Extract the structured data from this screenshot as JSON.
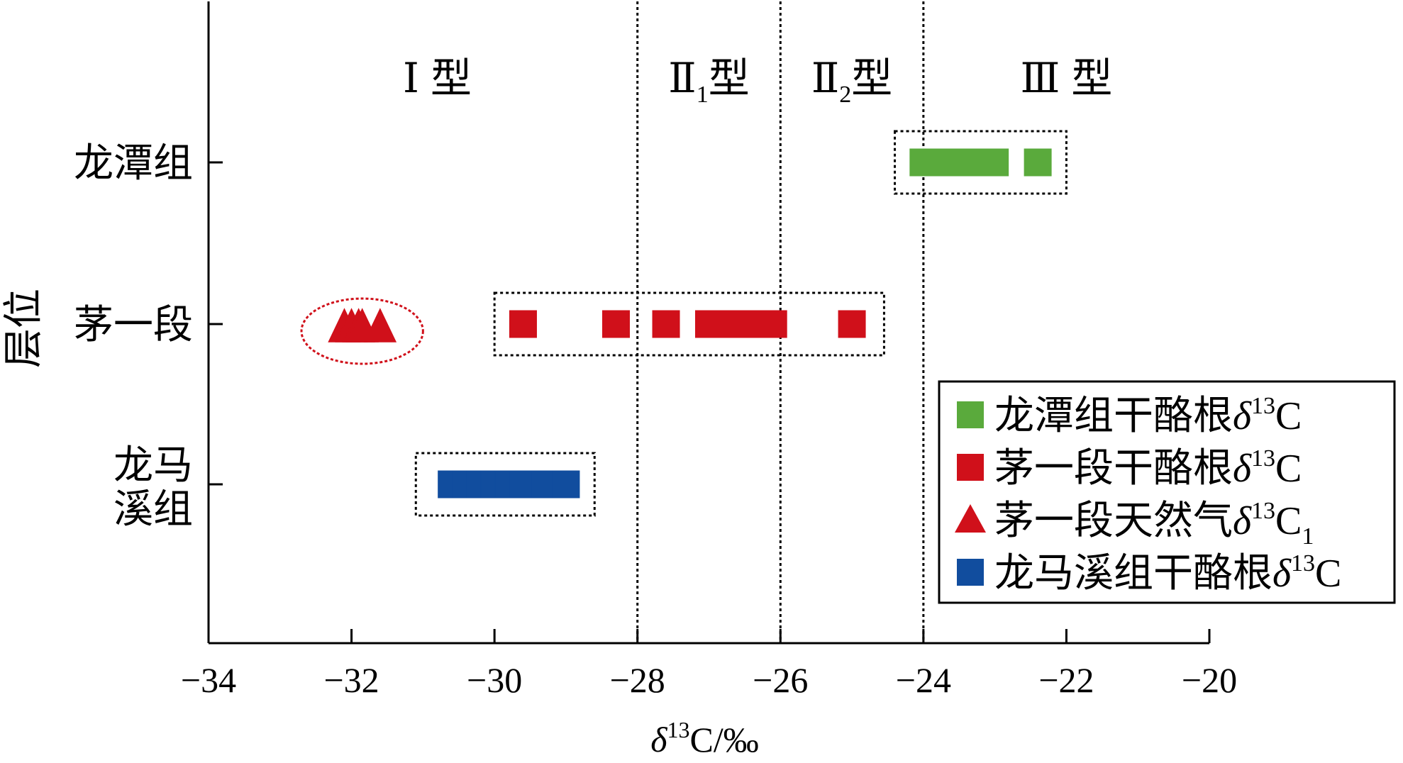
{
  "chart_data": {
    "type": "scatter",
    "xlabel": "δ¹³C/‰",
    "ylabel": "层位",
    "xlim": [
      -34,
      -20
    ],
    "x_ticks": [
      "−34",
      "−32",
      "−30",
      "−28",
      "−26",
      "−24",
      "−22",
      "−20"
    ],
    "x_tick_values": [
      -34,
      -32,
      -30,
      -28,
      -26,
      -24,
      -22,
      -20
    ],
    "y_categories": [
      "龙潭组",
      "茅一段",
      "龙马溪组"
    ],
    "y_tick_labels": [
      [
        "龙潭组"
      ],
      [
        "茅一段"
      ],
      [
        "龙马",
        "溪组"
      ]
    ],
    "type_boundaries": [
      -28,
      -26,
      -24
    ],
    "type_labels": [
      {
        "roman": "Ⅰ",
        "sub": "",
        "suffix": "型",
        "x_from": -34,
        "x_to": -28
      },
      {
        "roman": "Ⅱ",
        "sub": "1",
        "suffix": "型",
        "x_from": -28,
        "x_to": -26
      },
      {
        "roman": "Ⅱ",
        "sub": "2",
        "suffix": "型",
        "x_from": -26,
        "x_to": -24
      },
      {
        "roman": "Ⅲ",
        "sub": "",
        "suffix": "型",
        "x_from": -24,
        "x_to": -20
      }
    ],
    "series": [
      {
        "name": "龙潭组干酪根δ13C",
        "legend_main": "龙潭组干酪根δ",
        "legend_sup": "13",
        "legend_tail": "C",
        "legend_sub": "",
        "marker": "square",
        "color": "#5aaa3c",
        "category": "龙潭组",
        "x": [
          -24.0,
          -23.8,
          -23.6,
          -23.4,
          -23.2,
          -23.0,
          -22.4
        ],
        "group_range": [
          -24.4,
          -22.0
        ]
      },
      {
        "name": "茅一段干酪根δ13C",
        "legend_main": "茅一段干酪根δ",
        "legend_sup": "13",
        "legend_tail": "C",
        "legend_sub": "",
        "marker": "square",
        "color": "#d0101a",
        "category": "茅一段",
        "x": [
          -29.6,
          -28.3,
          -27.6,
          -27.0,
          -26.8,
          -26.6,
          -26.3,
          -26.1,
          -25.0
        ],
        "group_range": [
          -30.0,
          -24.55
        ]
      },
      {
        "name": "茅一段天然气δ13C1",
        "legend_main": "茅一段天然气δ",
        "legend_sup": "13",
        "legend_tail": "C",
        "legend_sub": "1",
        "marker": "triangle",
        "color": "#d0101a",
        "category": "茅一段",
        "x": [
          -32.1,
          -32.0,
          -31.9,
          -31.85,
          -31.6
        ],
        "group_ellipse": [
          -32.7,
          -31.0
        ]
      },
      {
        "name": "龙马溪组干酪根δ13C",
        "legend_main": "龙马溪组干酪根δ",
        "legend_sup": "13",
        "legend_tail": "C",
        "legend_sub": "",
        "marker": "square",
        "color": "#114d9e",
        "category": "龙马溪组",
        "x": [
          -30.6,
          -30.4,
          -30.2,
          -30.0,
          -29.8,
          -29.6,
          -29.3,
          -29.0
        ],
        "group_range": [
          -31.1,
          -28.6
        ]
      }
    ],
    "legend_position": "bottom-right",
    "grid": false
  }
}
